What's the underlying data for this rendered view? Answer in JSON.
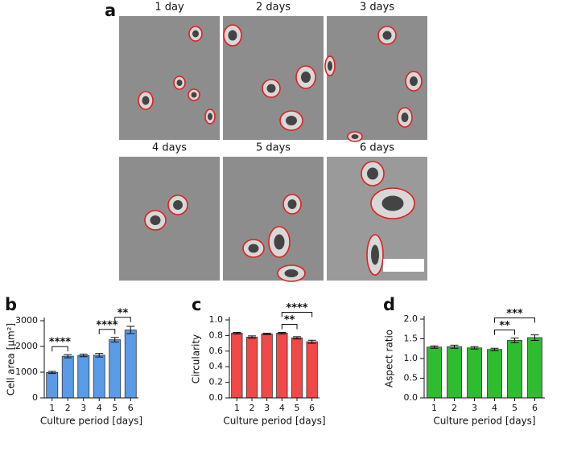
{
  "panel_a": {
    "label": "a",
    "titles": [
      "1 day",
      "2 days",
      "3 days",
      "4 days",
      "5 days",
      "6 days"
    ]
  },
  "chart_data": [
    {
      "type": "bar",
      "label": "b",
      "y_label": "Cell area [µm²]",
      "x_label": "Culture period [days]",
      "categories": [
        "1",
        "2",
        "3",
        "4",
        "5",
        "6"
      ],
      "values": [
        990,
        1620,
        1650,
        1660,
        2260,
        2640
      ],
      "errors": [
        40,
        60,
        50,
        70,
        90,
        140
      ],
      "color": "#5a9be8",
      "ylim": [
        0,
        3000
      ],
      "yticks": [
        0,
        1000,
        2000,
        3000
      ],
      "significance": [
        {
          "between": [
            "1",
            "2"
          ],
          "label": "****"
        },
        {
          "between": [
            "4",
            "5"
          ],
          "label": "****"
        },
        {
          "between": [
            "5",
            "6"
          ],
          "label": "**"
        }
      ]
    },
    {
      "type": "bar",
      "label": "c",
      "y_label": "Circularity",
      "x_label": "Culture period [days]",
      "categories": [
        "1",
        "2",
        "3",
        "4",
        "5",
        "6"
      ],
      "values": [
        0.83,
        0.78,
        0.82,
        0.83,
        0.77,
        0.72
      ],
      "errors": [
        0.01,
        0.015,
        0.01,
        0.01,
        0.015,
        0.02
      ],
      "color": "#f24848",
      "ylim": [
        0,
        1
      ],
      "yticks": [
        {
          "value": 0,
          "label": "0.0"
        },
        0.2,
        0.4,
        0.6,
        0.8,
        {
          "value": 1,
          "label": "1.0"
        }
      ],
      "significance": [
        {
          "between": [
            "4",
            "5"
          ],
          "label": "**"
        },
        {
          "between": [
            "4",
            "6"
          ],
          "label": "****"
        }
      ]
    },
    {
      "type": "bar",
      "label": "d",
      "y_label": "Aspect ratio",
      "x_label": "Culture period [days]",
      "categories": [
        "1",
        "2",
        "3",
        "4",
        "5",
        "6"
      ],
      "values": [
        1.29,
        1.3,
        1.27,
        1.23,
        1.46,
        1.53
      ],
      "errors": [
        0.03,
        0.04,
        0.03,
        0.03,
        0.06,
        0.07
      ],
      "color": "#2ebd2e",
      "ylim": [
        0,
        2
      ],
      "yticks": [
        {
          "value": 0,
          "label": "0.0"
        },
        0.5,
        {
          "value": 1,
          "label": "1.0"
        },
        1.5,
        {
          "value": 2,
          "label": "2.0"
        }
      ],
      "significance": [
        {
          "between": [
            "4",
            "5"
          ],
          "label": "**"
        },
        {
          "between": [
            "4",
            "6"
          ],
          "label": "***"
        }
      ]
    }
  ]
}
